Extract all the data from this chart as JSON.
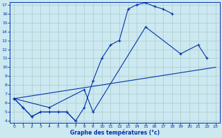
{
  "xlabel": "Graphe des températures (°c)",
  "background_color": "#cce8f0",
  "line_color": "#0033aa",
  "grid_color": "#aacccc",
  "x_min": 0,
  "x_max": 23,
  "y_min": 4,
  "y_max": 17,
  "line1_x": [
    0,
    1,
    2,
    3,
    4,
    5,
    6,
    7,
    8,
    9,
    10,
    11,
    12,
    13,
    14,
    15,
    16,
    17,
    18
  ],
  "line1_y": [
    6.5,
    5.5,
    4.5,
    5.0,
    5.0,
    5.0,
    5.0,
    4.0,
    5.5,
    8.5,
    11.0,
    12.5,
    13.0,
    16.5,
    17.0,
    17.2,
    16.8,
    16.5,
    16.0
  ],
  "line2_x": [
    0,
    1,
    2,
    3,
    4,
    5,
    6,
    7
  ],
  "line2_y": [
    6.5,
    5.5,
    4.5,
    5.0,
    5.0,
    5.0,
    5.0,
    4.0
  ],
  "line3_x": [
    0,
    4,
    8,
    9,
    15,
    19,
    21,
    22
  ],
  "line3_y": [
    6.5,
    5.5,
    7.5,
    5.0,
    14.5,
    11.5,
    12.5,
    11.0
  ],
  "line4_x": [
    0,
    23
  ],
  "line4_y": [
    6.5,
    10.0
  ]
}
